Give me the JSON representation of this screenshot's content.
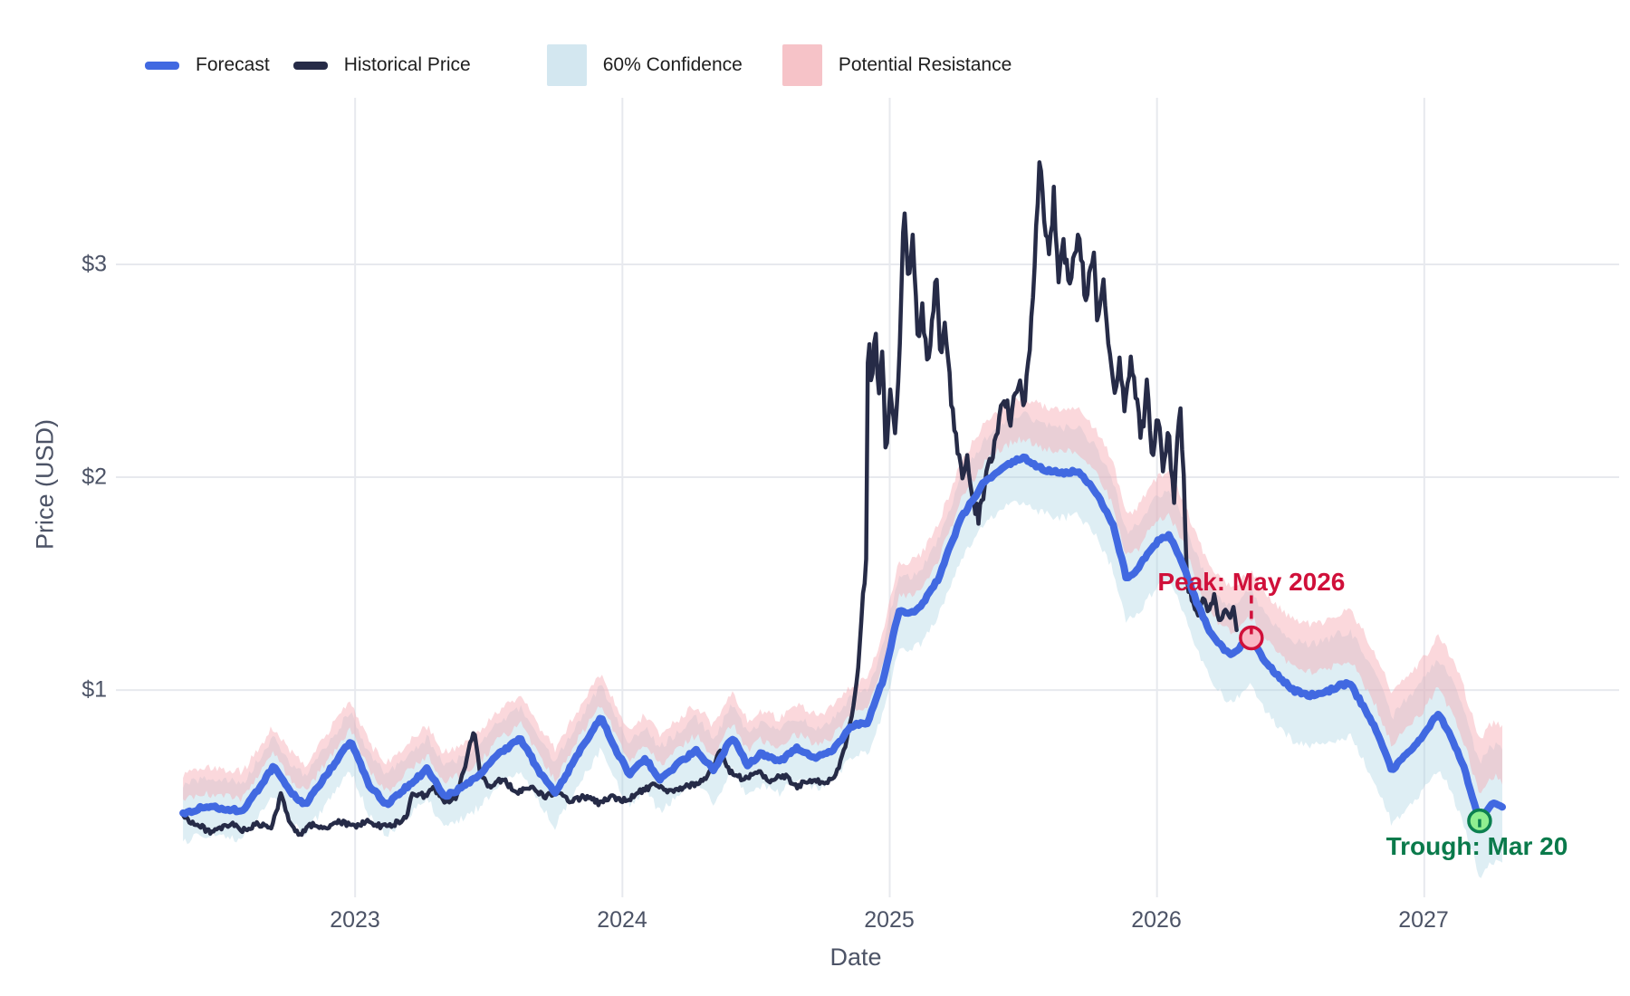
{
  "legend": {
    "items": [
      {
        "label": "Forecast",
        "swatch": "line",
        "color": "#4169e1"
      },
      {
        "label": "Historical Price",
        "swatch": "line",
        "color": "#262b47"
      },
      {
        "label": "60% Confidence",
        "swatch": "rect",
        "color": "#d3e7f0"
      },
      {
        "label": "Potential Resistance",
        "swatch": "rect",
        "color": "#f6c3c8"
      }
    ]
  },
  "axes": {
    "x": {
      "title": "Date",
      "ticks": [
        "2023",
        "2024",
        "2025",
        "2026",
        "2027"
      ],
      "tick_values": [
        2023,
        2024,
        2025,
        2026,
        2027
      ],
      "range": [
        2022.105,
        2027.729
      ]
    },
    "y": {
      "title": "Price (USD)",
      "ticks": [
        "$1",
        "$2",
        "$3"
      ],
      "tick_values": [
        1,
        2,
        3
      ],
      "range": [
        0.026,
        3.783
      ]
    }
  },
  "annotations": {
    "peak": {
      "label": "Peak: May 2026",
      "color": "#d0103a",
      "t": 2026.353,
      "v": 1.245,
      "marker_fill": "#f9b9c6",
      "marker_stroke": "#d0103a"
    },
    "trough": {
      "label": "Trough: Mar 20",
      "color": "#0a7a4b",
      "t": 2027.207,
      "v": 0.385,
      "marker_fill": "#90ee90",
      "marker_stroke": "#0c8050"
    }
  },
  "chart_data": {
    "type": "line",
    "title": "",
    "xlabel": "Date",
    "ylabel": "Price (USD)",
    "grid": true,
    "legend_position": "top",
    "series": [
      {
        "name": "Forecast",
        "color": "#4169e1",
        "width": 8,
        "points": [
          [
            2022.356,
            0.42
          ],
          [
            2022.444,
            0.455
          ],
          [
            2022.525,
            0.44
          ],
          [
            2022.58,
            0.43
          ],
          [
            2022.695,
            0.64
          ],
          [
            2022.756,
            0.52
          ],
          [
            2022.814,
            0.46
          ],
          [
            2022.892,
            0.6
          ],
          [
            2022.983,
            0.76
          ],
          [
            2023.054,
            0.55
          ],
          [
            2023.119,
            0.46
          ],
          [
            2023.197,
            0.55
          ],
          [
            2023.271,
            0.63
          ],
          [
            2023.332,
            0.5
          ],
          [
            2023.4,
            0.54
          ],
          [
            2023.468,
            0.6
          ],
          [
            2023.536,
            0.7
          ],
          [
            2023.62,
            0.77
          ],
          [
            2023.688,
            0.62
          ],
          [
            2023.749,
            0.51
          ],
          [
            2023.824,
            0.68
          ],
          [
            2023.919,
            0.87
          ],
          [
            2023.976,
            0.72
          ],
          [
            2024.027,
            0.6
          ],
          [
            2024.085,
            0.68
          ],
          [
            2024.139,
            0.58
          ],
          [
            2024.207,
            0.65
          ],
          [
            2024.275,
            0.72
          ],
          [
            2024.342,
            0.62
          ],
          [
            2024.41,
            0.78
          ],
          [
            2024.468,
            0.65
          ],
          [
            2024.519,
            0.7
          ],
          [
            2024.586,
            0.66
          ],
          [
            2024.654,
            0.73
          ],
          [
            2024.722,
            0.68
          ],
          [
            2024.79,
            0.72
          ],
          [
            2024.858,
            0.83
          ],
          [
            2024.919,
            0.85
          ],
          [
            2024.976,
            1.05
          ],
          [
            2025.034,
            1.37
          ],
          [
            2025.078,
            1.36
          ],
          [
            2025.122,
            1.4
          ],
          [
            2025.18,
            1.52
          ],
          [
            2025.264,
            1.8
          ],
          [
            2025.349,
            1.97
          ],
          [
            2025.434,
            2.06
          ],
          [
            2025.502,
            2.09
          ],
          [
            2025.569,
            2.04
          ],
          [
            2025.637,
            2.02
          ],
          [
            2025.705,
            2.03
          ],
          [
            2025.773,
            1.93
          ],
          [
            2025.834,
            1.78
          ],
          [
            2025.885,
            1.53
          ],
          [
            2025.925,
            1.56
          ],
          [
            2025.953,
            1.62
          ],
          [
            2026.003,
            1.7
          ],
          [
            2026.044,
            1.73
          ],
          [
            2026.095,
            1.6
          ],
          [
            2026.146,
            1.42
          ],
          [
            2026.207,
            1.25
          ],
          [
            2026.254,
            1.19
          ],
          [
            2026.281,
            1.16
          ],
          [
            2026.322,
            1.22
          ],
          [
            2026.353,
            1.245
          ],
          [
            2026.39,
            1.16
          ],
          [
            2026.434,
            1.09
          ],
          [
            2026.508,
            1.0
          ],
          [
            2026.569,
            0.975
          ],
          [
            2026.627,
            0.985
          ],
          [
            2026.681,
            1.02
          ],
          [
            2026.722,
            1.03
          ],
          [
            2026.773,
            0.92
          ],
          [
            2026.824,
            0.8
          ],
          [
            2026.881,
            0.62
          ],
          [
            2026.932,
            0.7
          ],
          [
            2026.976,
            0.75
          ],
          [
            2027.02,
            0.83
          ],
          [
            2027.051,
            0.89
          ],
          [
            2027.095,
            0.8
          ],
          [
            2027.142,
            0.66
          ],
          [
            2027.176,
            0.52
          ],
          [
            2027.207,
            0.385
          ],
          [
            2027.241,
            0.45
          ],
          [
            2027.271,
            0.47
          ],
          [
            2027.298,
            0.44
          ]
        ]
      },
      {
        "name": "Historical Price",
        "color": "#262b47",
        "width": 4.5,
        "points": [
          [
            2022.356,
            0.41
          ],
          [
            2022.4,
            0.37
          ],
          [
            2022.468,
            0.33
          ],
          [
            2022.536,
            0.37
          ],
          [
            2022.586,
            0.34
          ],
          [
            2022.637,
            0.37
          ],
          [
            2022.688,
            0.35
          ],
          [
            2022.722,
            0.51
          ],
          [
            2022.749,
            0.4
          ],
          [
            2022.79,
            0.32
          ],
          [
            2022.841,
            0.37
          ],
          [
            2022.892,
            0.35
          ],
          [
            2022.942,
            0.38
          ],
          [
            2022.993,
            0.36
          ],
          [
            2023.044,
            0.38
          ],
          [
            2023.095,
            0.36
          ],
          [
            2023.146,
            0.37
          ],
          [
            2023.19,
            0.4
          ],
          [
            2023.217,
            0.52
          ],
          [
            2023.264,
            0.5
          ],
          [
            2023.298,
            0.54
          ],
          [
            2023.332,
            0.47
          ],
          [
            2023.383,
            0.5
          ],
          [
            2023.444,
            0.82
          ],
          [
            2023.468,
            0.6
          ],
          [
            2023.502,
            0.55
          ],
          [
            2023.553,
            0.58
          ],
          [
            2023.603,
            0.52
          ],
          [
            2023.654,
            0.55
          ],
          [
            2023.705,
            0.5
          ],
          [
            2023.756,
            0.52
          ],
          [
            2023.807,
            0.48
          ],
          [
            2023.858,
            0.5
          ],
          [
            2023.908,
            0.47
          ],
          [
            2023.959,
            0.5
          ],
          [
            2024.01,
            0.48
          ],
          [
            2024.061,
            0.52
          ],
          [
            2024.112,
            0.55
          ],
          [
            2024.18,
            0.52
          ],
          [
            2024.247,
            0.55
          ],
          [
            2024.315,
            0.58
          ],
          [
            2024.366,
            0.72
          ],
          [
            2024.4,
            0.62
          ],
          [
            2024.451,
            0.58
          ],
          [
            2024.502,
            0.62
          ],
          [
            2024.553,
            0.57
          ],
          [
            2024.603,
            0.6
          ],
          [
            2024.654,
            0.55
          ],
          [
            2024.705,
            0.58
          ],
          [
            2024.756,
            0.56
          ],
          [
            2024.797,
            0.6
          ],
          [
            2024.831,
            0.72
          ],
          [
            2024.858,
            0.88
          ],
          [
            2024.881,
            1.08
          ],
          [
            2024.898,
            1.42
          ],
          [
            2024.912,
            1.6
          ],
          [
            2024.919,
            2.72
          ],
          [
            2024.932,
            2.45
          ],
          [
            2024.946,
            2.72
          ],
          [
            2024.959,
            2.35
          ],
          [
            2024.973,
            2.6
          ],
          [
            2024.986,
            2.08
          ],
          [
            2025.003,
            2.45
          ],
          [
            2025.02,
            2.2
          ],
          [
            2025.037,
            2.55
          ],
          [
            2025.054,
            3.3
          ],
          [
            2025.071,
            2.9
          ],
          [
            2025.088,
            3.13
          ],
          [
            2025.105,
            2.62
          ],
          [
            2025.122,
            2.78
          ],
          [
            2025.142,
            2.55
          ],
          [
            2025.159,
            2.75
          ],
          [
            2025.173,
            2.94
          ],
          [
            2025.19,
            2.6
          ],
          [
            2025.21,
            2.7
          ],
          [
            2025.231,
            2.35
          ],
          [
            2025.251,
            2.15
          ],
          [
            2025.271,
            1.98
          ],
          [
            2025.292,
            2.1
          ],
          [
            2025.312,
            1.9
          ],
          [
            2025.332,
            1.82
          ],
          [
            2025.352,
            1.95
          ],
          [
            2025.373,
            2.05
          ],
          [
            2025.4,
            2.2
          ],
          [
            2025.427,
            2.35
          ],
          [
            2025.454,
            2.28
          ],
          [
            2025.481,
            2.45
          ],
          [
            2025.502,
            2.35
          ],
          [
            2025.522,
            2.55
          ],
          [
            2025.542,
            3.0
          ],
          [
            2025.563,
            3.56
          ],
          [
            2025.576,
            3.2
          ],
          [
            2025.597,
            3.05
          ],
          [
            2025.614,
            3.33
          ],
          [
            2025.631,
            2.95
          ],
          [
            2025.651,
            3.1
          ],
          [
            2025.671,
            2.9
          ],
          [
            2025.692,
            3.05
          ],
          [
            2025.712,
            3.12
          ],
          [
            2025.732,
            2.8
          ],
          [
            2025.749,
            2.95
          ],
          [
            2025.763,
            3.05
          ],
          [
            2025.78,
            2.7
          ],
          [
            2025.8,
            2.88
          ],
          [
            2025.82,
            2.6
          ],
          [
            2025.841,
            2.42
          ],
          [
            2025.861,
            2.55
          ],
          [
            2025.881,
            2.3
          ],
          [
            2025.902,
            2.6
          ],
          [
            2025.922,
            2.35
          ],
          [
            2025.942,
            2.2
          ],
          [
            2025.963,
            2.42
          ],
          [
            2025.983,
            2.1
          ],
          [
            2026.003,
            2.28
          ],
          [
            2026.024,
            2.0
          ],
          [
            2026.044,
            2.2
          ],
          [
            2026.064,
            1.9
          ],
          [
            2026.085,
            2.35
          ],
          [
            2026.098,
            2.05
          ],
          [
            2026.112,
            1.55
          ],
          [
            2026.132,
            1.42
          ],
          [
            2026.153,
            1.35
          ],
          [
            2026.173,
            1.44
          ],
          [
            2026.193,
            1.36
          ],
          [
            2026.214,
            1.44
          ],
          [
            2026.234,
            1.32
          ],
          [
            2026.254,
            1.38
          ],
          [
            2026.275,
            1.33
          ],
          [
            2026.288,
            1.4
          ],
          [
            2026.298,
            1.28
          ]
        ]
      }
    ],
    "bands": [
      {
        "name": "60% Confidence",
        "fill": "rgba(168,210,226,0.38)",
        "around": "Forecast",
        "lower_factor": -1.0,
        "upper_factor": 1.0
      },
      {
        "name": "Potential Resistance",
        "fill": "rgba(247,168,178,0.45)",
        "around": "Forecast",
        "lower_factor": 0.45,
        "upper_factor": 1.4
      }
    ],
    "band_halfwidth": [
      [
        2022.356,
        0.13
      ],
      [
        2023.0,
        0.14
      ],
      [
        2023.7,
        0.15
      ],
      [
        2024.4,
        0.15
      ],
      [
        2024.86,
        0.14
      ],
      [
        2024.93,
        0.15
      ],
      [
        2025.03,
        0.17
      ],
      [
        2025.16,
        0.18
      ],
      [
        2025.4,
        0.2
      ],
      [
        2025.6,
        0.21
      ],
      [
        2025.88,
        0.21
      ],
      [
        2026.15,
        0.22
      ],
      [
        2026.42,
        0.23
      ],
      [
        2026.76,
        0.25
      ],
      [
        2027.03,
        0.26
      ],
      [
        2027.21,
        0.27
      ],
      [
        2027.298,
        0.27
      ]
    ],
    "gridline_color": "#e7e9ee"
  }
}
